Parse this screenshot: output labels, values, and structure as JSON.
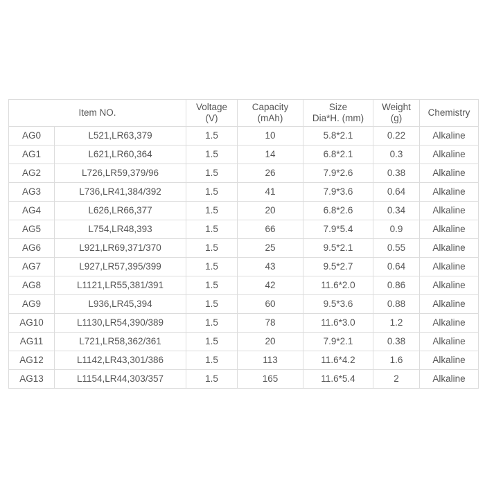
{
  "headers": {
    "item_no": "Item NO.",
    "voltage": [
      "Voltage",
      "(V)"
    ],
    "capacity": [
      "Capacity",
      "(mAh)"
    ],
    "size": [
      "Size",
      "Dia*H. (mm)"
    ],
    "weight": [
      "Weight",
      "(g)"
    ],
    "chemistry": "Chemistry"
  },
  "rows": [
    [
      "AG0",
      "L521,LR63,379",
      "1.5",
      "10",
      "5.8*2.1",
      "0.22",
      "Alkaline"
    ],
    [
      "AG1",
      "L621,LR60,364",
      "1.5",
      "14",
      "6.8*2.1",
      "0.3",
      "Alkaline"
    ],
    [
      "AG2",
      "L726,LR59,379/96",
      "1.5",
      "26",
      "7.9*2.6",
      "0.38",
      "Alkaline"
    ],
    [
      "AG3",
      "L736,LR41,384/392",
      "1.5",
      "41",
      "7.9*3.6",
      "0.64",
      "Alkaline"
    ],
    [
      "AG4",
      "L626,LR66,377",
      "1.5",
      "20",
      "6.8*2.6",
      "0.34",
      "Alkaline"
    ],
    [
      "AG5",
      "L754,LR48,393",
      "1.5",
      "66",
      "7.9*5.4",
      "0.9",
      "Alkaline"
    ],
    [
      "AG6",
      "L921,LR69,371/370",
      "1.5",
      "25",
      "9.5*2.1",
      "0.55",
      "Alkaline"
    ],
    [
      "AG7",
      "L927,LR57,395/399",
      "1.5",
      "43",
      "9.5*2.7",
      "0.64",
      "Alkaline"
    ],
    [
      "AG8",
      "L1121,LR55,381/391",
      "1.5",
      "42",
      "11.6*2.0",
      "0.86",
      "Alkaline"
    ],
    [
      "AG9",
      "L936,LR45,394",
      "1.5",
      "60",
      "9.5*3.6",
      "0.88",
      "Alkaline"
    ],
    [
      "AG10",
      "L1130,LR54,390/389",
      "1.5",
      "78",
      "11.6*3.0",
      "1.2",
      "Alkaline"
    ],
    [
      "AG11",
      "L721,LR58,362/361",
      "1.5",
      "20",
      "7.9*2.1",
      "0.38",
      "Alkaline"
    ],
    [
      "AG12",
      "L1142,LR43,301/386",
      "1.5",
      "113",
      "11.6*4.2",
      "1.6",
      "Alkaline"
    ],
    [
      "AG13",
      "L1154,LR44,303/357",
      "1.5",
      "165",
      "11.6*5.4",
      "2",
      "Alkaline"
    ]
  ]
}
